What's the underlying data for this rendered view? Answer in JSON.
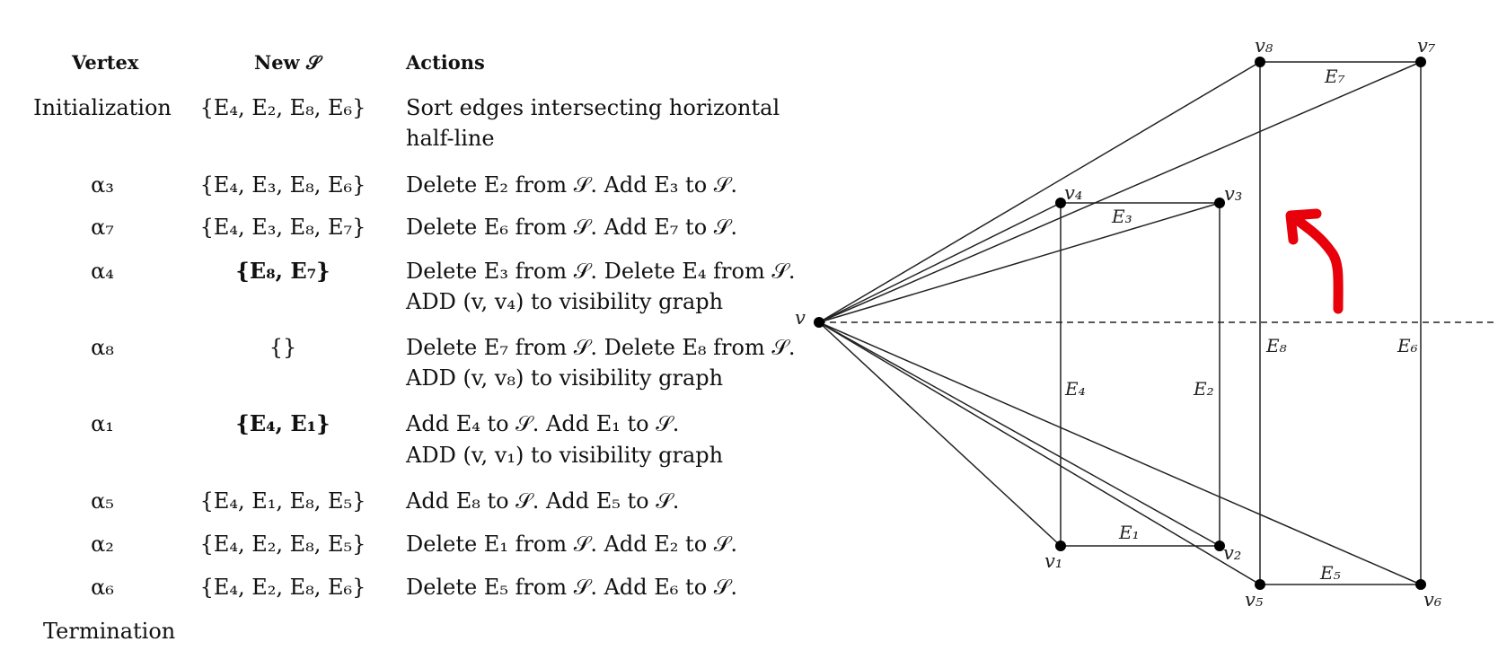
{
  "table": {
    "headers": {
      "vertex": "Vertex",
      "new_set": "New 𝒮",
      "actions": "Actions"
    },
    "rows": [
      {
        "vertex": "Initialization",
        "set": "{E₄, E₂, E₈, E₆}",
        "action1": "Sort edges intersecting horizontal",
        "action2": "half-line"
      },
      {
        "vertex": "α₃",
        "set": "{E₄, E₃, E₈, E₆}",
        "action1": "Delete E₂ from 𝒮. Add E₃ to 𝒮.",
        "action2": ""
      },
      {
        "vertex": "α₇",
        "set": "{E₄, E₃, E₈, E₇}",
        "action1": "Delete E₆ from 𝒮. Add E₇ to 𝒮.",
        "action2": ""
      },
      {
        "vertex": "α₄",
        "set": "{E₈, E₇}",
        "action1": "Delete E₃ from 𝒮. Delete E₄ from 𝒮.",
        "action2": "ADD (v, v₄) to visibility graph"
      },
      {
        "vertex": "α₈",
        "set": "{}",
        "action1": "Delete E₇ from 𝒮. Delete E₈ from 𝒮.",
        "action2": "ADD (v, v₈) to visibility graph"
      },
      {
        "vertex": "α₁",
        "set": "{E₄, E₁}",
        "action1": "Add E₄ to 𝒮. Add E₁ to 𝒮.",
        "action2": "ADD (v, v₁) to visibility graph"
      },
      {
        "vertex": "α₅",
        "set": "{E₄, E₁, E₈, E₅}",
        "action1": "Add E₈ to 𝒮. Add E₅ to 𝒮.",
        "action2": ""
      },
      {
        "vertex": "α₂",
        "set": "{E₄, E₂, E₈, E₅}",
        "action1": "Delete E₁ from 𝒮. Add E₂ to 𝒮.",
        "action2": ""
      },
      {
        "vertex": "α₆",
        "set": "{E₄, E₂, E₈, E₆}",
        "action1": "Delete E₅ from 𝒮. Add E₆ to 𝒮.",
        "action2": ""
      },
      {
        "vertex": "Termination",
        "set": "",
        "action1": "",
        "action2": ""
      }
    ]
  },
  "diagram": {
    "vertex_labels": {
      "v": "v",
      "v1": "v₁",
      "v2": "v₂",
      "v3": "v₃",
      "v4": "v₄",
      "v5": "v₅",
      "v6": "v₆",
      "v7": "v₇",
      "v8": "v₈"
    },
    "edge_labels": {
      "E1": "E₁",
      "E2": "E₂",
      "E3": "E₃",
      "E4": "E₄",
      "E5": "E₅",
      "E6": "E₆",
      "E7": "E₇",
      "E8": "E₈"
    },
    "arrow_color": "#e8000b",
    "line_color": "#222222"
  }
}
